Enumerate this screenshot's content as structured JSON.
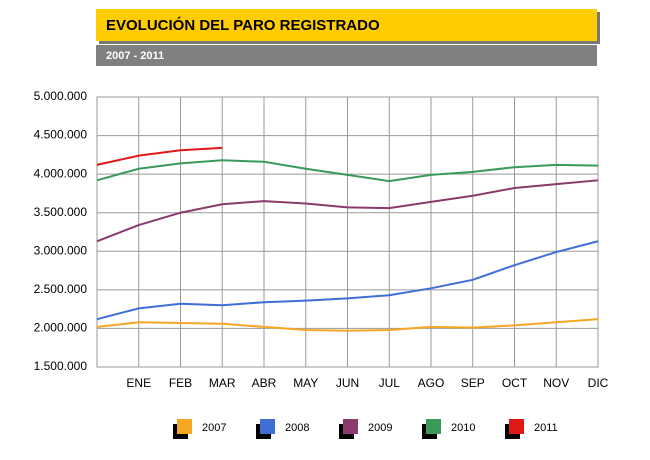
{
  "chart_data": {
    "type": "line",
    "title": "EVOLUCIÓN DEL PARO REGISTRADO",
    "subtitle": "2007 - 2011",
    "categories": [
      null,
      "ENE",
      "FEB",
      "MAR",
      "ABR",
      "MAY",
      "JUN",
      "JUL",
      "AGO",
      "SEP",
      "OCT",
      "NOV",
      "DIC"
    ],
    "series": [
      {
        "name": "2007",
        "color": "#f5a623",
        "values": [
          2020000,
          2080000,
          2070000,
          2060000,
          2020000,
          1980000,
          1970000,
          1980000,
          2020000,
          2010000,
          2040000,
          2080000,
          2120000
        ]
      },
      {
        "name": "2008",
        "color": "#3f6fd6",
        "values": [
          2120000,
          2260000,
          2320000,
          2300000,
          2340000,
          2360000,
          2390000,
          2430000,
          2520000,
          2630000,
          2820000,
          2990000,
          3130000
        ]
      },
      {
        "name": "2009",
        "color": "#8b3a6e",
        "values": [
          3130000,
          3340000,
          3500000,
          3610000,
          3650000,
          3620000,
          3570000,
          3560000,
          3640000,
          3720000,
          3820000,
          3870000,
          3920000
        ]
      },
      {
        "name": "2010",
        "color": "#3a9a5b",
        "values": [
          3920000,
          4070000,
          4140000,
          4180000,
          4160000,
          4070000,
          3990000,
          3910000,
          3990000,
          4030000,
          4090000,
          4120000,
          4110000
        ]
      },
      {
        "name": "2011",
        "color": "#e01818",
        "values": [
          4120000,
          4240000,
          4310000,
          4340000,
          null,
          null,
          null,
          null,
          null,
          null,
          null,
          null,
          null
        ]
      }
    ],
    "ylim": [
      1500000,
      5000000
    ],
    "yticks": [
      {
        "value": 1500000,
        "label": "1.500.000"
      },
      {
        "value": 2000000,
        "label": "2.000.000"
      },
      {
        "value": 2500000,
        "label": "2.500.000"
      },
      {
        "value": 3000000,
        "label": "3.000.000"
      },
      {
        "value": 3500000,
        "label": "3.500.000"
      },
      {
        "value": 4000000,
        "label": "4.000.000"
      },
      {
        "value": 4500000,
        "label": "4.500.000"
      },
      {
        "value": 5000000,
        "label": "5.000.000"
      }
    ],
    "grid": true
  }
}
